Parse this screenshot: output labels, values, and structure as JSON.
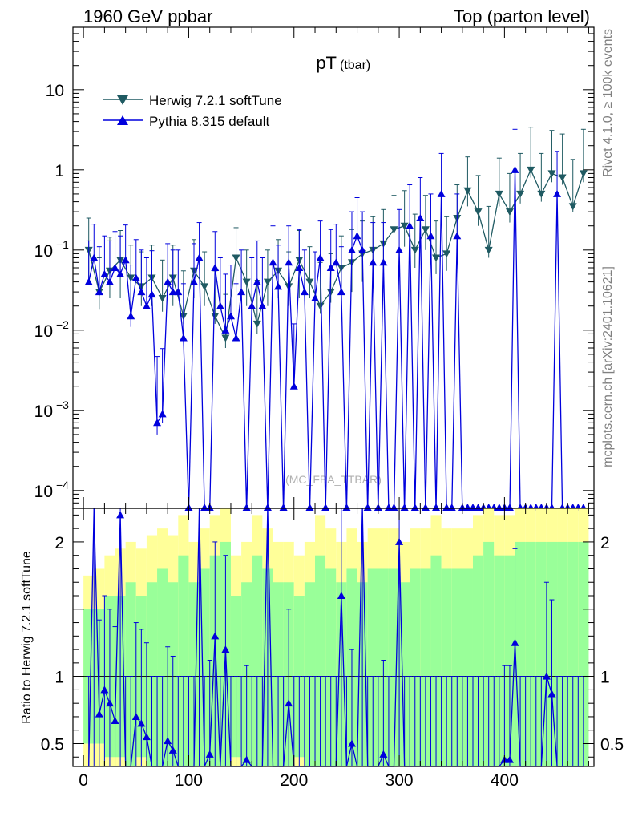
{
  "chart_data": {
    "type": "line",
    "header_left": "1960 GeV ppbar",
    "header_right": "Top (parton level)",
    "title": "pT",
    "title_sub": "(tbar)",
    "watermark": "(MC_FBA_TTBAR)",
    "side_label_top": "Rivet 4.1.0, ≥ 100k events",
    "side_label_bottom": "mcplots.cern.ch [arXiv:2401.10621]",
    "ratio_ylabel": "Ratio to Herwig 7.2.1 softTune",
    "main_yscale": "log",
    "main_ylim": [
      6e-05,
      60
    ],
    "main_yticks": [
      {
        "value": 0.0001,
        "base": "10",
        "exp": "−4"
      },
      {
        "value": 0.001,
        "base": "10",
        "exp": "−3"
      },
      {
        "value": 0.01,
        "base": "10",
        "exp": "−2"
      },
      {
        "value": 0.1,
        "base": "10",
        "exp": "−1"
      },
      {
        "value": 1,
        "base": "1",
        "exp": ""
      },
      {
        "value": 10,
        "base": "10",
        "exp": ""
      }
    ],
    "ratio_ylim": [
      0.33,
      2.25
    ],
    "ratio_yticks": [
      {
        "value": 0.5,
        "label": "0.5"
      },
      {
        "value": 1,
        "label": "1"
      },
      {
        "value": 2,
        "label": "2"
      }
    ],
    "xlim": [
      -10,
      485
    ],
    "xticks": [
      {
        "value": 0,
        "label": "0"
      },
      {
        "value": 100,
        "label": "100"
      },
      {
        "value": 200,
        "label": "200"
      },
      {
        "value": 300,
        "label": "300"
      },
      {
        "value": 400,
        "label": "400"
      }
    ],
    "series": [
      {
        "name": "Herwig 7.2.1 softTune",
        "color": "#1f5a62",
        "marker": "triangle-down",
        "x": [
          5,
          15,
          25,
          35,
          45,
          55,
          65,
          75,
          85,
          95,
          105,
          115,
          125,
          135,
          145,
          155,
          165,
          175,
          185,
          195,
          205,
          215,
          225,
          235,
          245,
          255,
          265,
          275,
          285,
          295,
          305,
          315,
          325,
          335,
          345,
          355,
          365,
          375,
          385,
          395,
          405,
          415,
          425,
          435,
          445,
          455,
          465,
          475
        ],
        "values": [
          0.1,
          0.03,
          0.055,
          0.075,
          0.045,
          0.035,
          0.045,
          0.025,
          0.045,
          0.015,
          0.055,
          0.035,
          0.015,
          0.008,
          0.08,
          0.04,
          0.012,
          0.04,
          0.055,
          0.035,
          0.075,
          0.04,
          0.02,
          0.03,
          0.06,
          0.07,
          0.09,
          0.1,
          0.12,
          0.18,
          0.2,
          0.1,
          0.18,
          0.08,
          0.09,
          0.25,
          0.55,
          0.3,
          0.1,
          0.5,
          0.3,
          0.5,
          1.0,
          0.5,
          0.9,
          0.8,
          0.35,
          0.9
        ],
        "err_up": [
          0.15,
          0.05,
          0.09,
          0.1,
          0.07,
          0.06,
          0.07,
          0.05,
          0.07,
          0.04,
          0.08,
          0.06,
          0.04,
          0.02,
          0.11,
          0.06,
          0.03,
          0.06,
          0.08,
          0.06,
          0.1,
          0.07,
          0.05,
          0.06,
          0.09,
          0.11,
          0.14,
          0.16,
          0.2,
          0.3,
          0.35,
          0.18,
          0.3,
          0.15,
          0.17,
          0.4,
          0.9,
          0.55,
          0.25,
          0.9,
          0.6,
          1.1,
          2.4,
          1.1,
          2.2,
          2.0,
          1.0,
          2.3
        ],
        "err_down": [
          0.06,
          0.012,
          0.03,
          0.05,
          0.025,
          0.015,
          0.025,
          0.008,
          0.025,
          0.003,
          0.03,
          0.015,
          0.003,
          0.002,
          0.05,
          0.02,
          0.003,
          0.02,
          0.03,
          0.015,
          0.05,
          0.015,
          0.004,
          0.008,
          0.03,
          0.04,
          0.05,
          0.05,
          0.06,
          0.08,
          0.09,
          0.04,
          0.08,
          0.03,
          0.035,
          0.1,
          0.2,
          0.1,
          0.02,
          0.15,
          0.08,
          0.12,
          0.2,
          0.1,
          0.2,
          0.15,
          0.05,
          0.2
        ]
      },
      {
        "name": "Pythia 8.315 default",
        "color": "#0000dd",
        "marker": "triangle-up",
        "x": [
          5,
          10,
          15,
          20,
          25,
          30,
          35,
          40,
          45,
          50,
          55,
          60,
          65,
          70,
          75,
          80,
          85,
          90,
          95,
          100,
          105,
          110,
          115,
          120,
          125,
          130,
          135,
          140,
          145,
          150,
          155,
          160,
          165,
          170,
          175,
          180,
          185,
          190,
          195,
          200,
          205,
          210,
          215,
          220,
          225,
          230,
          235,
          240,
          245,
          250,
          255,
          260,
          265,
          270,
          275,
          280,
          285,
          290,
          295,
          300,
          305,
          310,
          315,
          320,
          325,
          330,
          335,
          340,
          345,
          350,
          355,
          360,
          365,
          370,
          375,
          380,
          385,
          390,
          395,
          400,
          405,
          410,
          415,
          420,
          425,
          430,
          435,
          440,
          445,
          450,
          455,
          460,
          465,
          470,
          475
        ],
        "values": [
          0.04,
          0.08,
          0.03,
          0.05,
          0.04,
          0.06,
          0.05,
          0.075,
          0.015,
          0.045,
          0.03,
          0.02,
          0.028,
          0.0007,
          0.0009,
          0.04,
          0.03,
          0.03,
          0.008,
          0.0,
          0.04,
          0.08,
          0.0,
          0.0,
          0.06,
          0.02,
          0.01,
          0.015,
          0.008,
          0.03,
          0.0,
          0.02,
          0.04,
          0.02,
          0.0,
          0.07,
          0.035,
          0.0,
          0.07,
          0.002,
          0.06,
          0.03,
          0.0,
          0.025,
          0.08,
          0.0,
          0.06,
          0.07,
          0.03,
          0.0,
          0.1,
          0.15,
          0.1,
          0.0,
          0.07,
          0.0,
          0.07,
          0.0,
          0.0,
          0.1,
          0.0,
          0.2,
          0.0,
          0.25,
          0.0,
          0.15,
          0.0,
          0.5,
          0.0,
          0.0,
          0.15,
          0.0,
          0.0,
          0.0,
          0.0,
          0.0,
          0.0,
          0.0,
          0.0,
          0.0,
          0.0,
          1.0,
          0.0,
          0.0,
          0.0,
          0.0,
          0.0,
          0.0,
          0.0,
          0.5,
          0.0,
          0.0,
          0.0,
          0.0,
          0.0
        ],
        "err_up": [
          0.09,
          0.13,
          0.08,
          0.1,
          0.09,
          0.11,
          0.1,
          0.13,
          0.05,
          0.09,
          0.07,
          0.06,
          0.07,
          0.004,
          0.005,
          0.08,
          0.07,
          0.07,
          0.03,
          0.0,
          0.08,
          0.14,
          0.0,
          0.0,
          0.11,
          0.06,
          0.04,
          0.05,
          0.03,
          0.07,
          0.0,
          0.06,
          0.09,
          0.06,
          0.0,
          0.13,
          0.08,
          0.0,
          0.13,
          0.01,
          0.12,
          0.07,
          0.0,
          0.07,
          0.15,
          0.0,
          0.12,
          0.14,
          0.08,
          0.0,
          0.2,
          0.3,
          0.2,
          0.0,
          0.15,
          0.0,
          0.15,
          0.0,
          0.0,
          0.22,
          0.0,
          0.45,
          0.0,
          0.55,
          0.0,
          0.35,
          0.0,
          1.1,
          0.0,
          0.0,
          0.35,
          0.0,
          0.0,
          0.0,
          0.0,
          0.0,
          0.0,
          0.0,
          0.0,
          0.0,
          0.0,
          2.2,
          0.0,
          0.0,
          0.0,
          0.0,
          0.0,
          0.0,
          0.0,
          1.2,
          0.0,
          0.0,
          0.0,
          0.0,
          0.0
        ],
        "err_down": [
          0.0001,
          0.005,
          0.003,
          0.0001,
          0.0001,
          0.0001,
          0.0001,
          0.0001,
          0.004,
          0.0001,
          0.0001,
          0.0001,
          0.0001,
          0.0002,
          0.0002,
          0.0001,
          0.0001,
          0.0001,
          0.0001,
          0.0,
          0.0001,
          0.0001,
          0.0,
          0.0,
          0.0001,
          0.0001,
          0.0001,
          0.0001,
          0.0001,
          0.0001,
          0.0,
          0.0001,
          0.0001,
          0.0001,
          0.0,
          0.0001,
          0.0001,
          0.0,
          0.0001,
          0.0001,
          0.0001,
          0.0001,
          0.0,
          0.0001,
          0.0001,
          0.0,
          0.0001,
          0.0001,
          0.0001,
          0.0,
          0.0001,
          0.0001,
          0.0001,
          0.0,
          0.0001,
          0.0,
          0.0001,
          0.0,
          0.0,
          0.0001,
          0.0,
          0.0001,
          0.0,
          0.0001,
          0.0,
          0.0001,
          0.0,
          0.0001,
          0.0,
          0.0,
          0.0001,
          0.0,
          0.0,
          0.0,
          0.0,
          0.0,
          0.0,
          0.0,
          0.0,
          0.0,
          0.0,
          0.0001,
          0.0,
          0.0,
          0.0,
          0.0,
          0.0,
          0.0,
          0.0,
          0.0001,
          0.0,
          0.0,
          0.0,
          0.0,
          0.0
        ]
      }
    ],
    "ratio_band": {
      "x": [
        5,
        15,
        25,
        35,
        45,
        55,
        65,
        75,
        85,
        95,
        105,
        115,
        125,
        135,
        145,
        155,
        165,
        175,
        185,
        195,
        205,
        215,
        225,
        235,
        245,
        255,
        265,
        275,
        285,
        295,
        305,
        315,
        325,
        335,
        345,
        355,
        365,
        375,
        385,
        395,
        405,
        415,
        425,
        435,
        445,
        455,
        465,
        475
      ],
      "inner_half_width": [
        0.5,
        0.5,
        0.6,
        0.6,
        0.7,
        0.6,
        0.7,
        0.8,
        0.7,
        0.9,
        0.7,
        0.8,
        0.9,
        1.0,
        0.6,
        0.7,
        0.9,
        0.8,
        0.7,
        0.7,
        0.6,
        0.7,
        0.9,
        0.8,
        0.7,
        0.8,
        0.7,
        0.8,
        0.8,
        0.8,
        0.7,
        0.8,
        0.8,
        0.9,
        0.8,
        0.8,
        0.8,
        0.9,
        1.0,
        0.9,
        0.9,
        1.0,
        1.0,
        1.0,
        1.0,
        1.0,
        1.0,
        1.0
      ],
      "outer_half_width": [
        0.75,
        0.8,
        0.9,
        0.95,
        1.0,
        0.95,
        1.05,
        1.1,
        1.05,
        1.2,
        1.0,
        1.1,
        1.2,
        1.3,
        0.9,
        1.0,
        1.2,
        1.1,
        1.0,
        1.0,
        0.9,
        1.0,
        1.2,
        1.1,
        1.0,
        1.1,
        1.0,
        1.1,
        1.1,
        1.1,
        1.0,
        1.1,
        1.1,
        1.2,
        1.1,
        1.1,
        1.1,
        1.2,
        1.3,
        1.2,
        1.2,
        1.3,
        1.3,
        1.3,
        1.3,
        1.3,
        1.3,
        1.3
      ],
      "inner_color": "#99ff99",
      "outer_color": "#ffff99"
    },
    "ratio_points": {
      "x": [
        5,
        10,
        15,
        20,
        25,
        30,
        35,
        40,
        45,
        50,
        55,
        60,
        65,
        70,
        75,
        80,
        85,
        90,
        95,
        100,
        105,
        110,
        115,
        120,
        125,
        130,
        135,
        140,
        145,
        150,
        155,
        160,
        165,
        170,
        175,
        180,
        185,
        190,
        195,
        200,
        205,
        210,
        215,
        220,
        225,
        230,
        235,
        240,
        245,
        250,
        255,
        260,
        265,
        270,
        275,
        280,
        285,
        290,
        295,
        300,
        305,
        310,
        315,
        320,
        325,
        330,
        335,
        340,
        345,
        350,
        355,
        360,
        365,
        370,
        375,
        380,
        385,
        390,
        395,
        400,
        405,
        410,
        415,
        420,
        425,
        430,
        435,
        440,
        445,
        450,
        455,
        460,
        465,
        470,
        475
      ],
      "values": [
        0.3,
        2.5,
        0.72,
        0.9,
        0.8,
        0.67,
        2.2,
        0.3,
        0.3,
        0.7,
        0.65,
        0.55,
        0.3,
        0.3,
        0.3,
        0.52,
        0.45,
        0.3,
        0.3,
        0.3,
        0.3,
        2.5,
        0.3,
        0.42,
        1.3,
        0.3,
        1.2,
        0.3,
        0.3,
        0.3,
        0.38,
        0.3,
        0.3,
        0.3,
        2.5,
        0.3,
        0.3,
        0.3,
        0.8,
        0.3,
        0.3,
        0.3,
        0.3,
        0.3,
        0.3,
        0.3,
        0.3,
        0.3,
        1.6,
        0.3,
        0.5,
        0.3,
        2.5,
        0.3,
        0.3,
        0.3,
        0.42,
        0.3,
        0.3,
        2.0,
        0.3,
        0.3,
        0.3,
        0.3,
        0.3,
        0.3,
        0.3,
        0.3,
        0.3,
        0.3,
        0.3,
        0.3,
        0.3,
        0.3,
        0.3,
        0.3,
        0.3,
        0.3,
        0.3,
        0.38,
        0.38,
        1.25,
        0.3,
        0.3,
        0.3,
        0.3,
        0.3,
        1.0,
        0.87,
        0.3,
        0.3,
        0.3,
        0.3,
        0.3,
        0.3
      ]
    }
  }
}
